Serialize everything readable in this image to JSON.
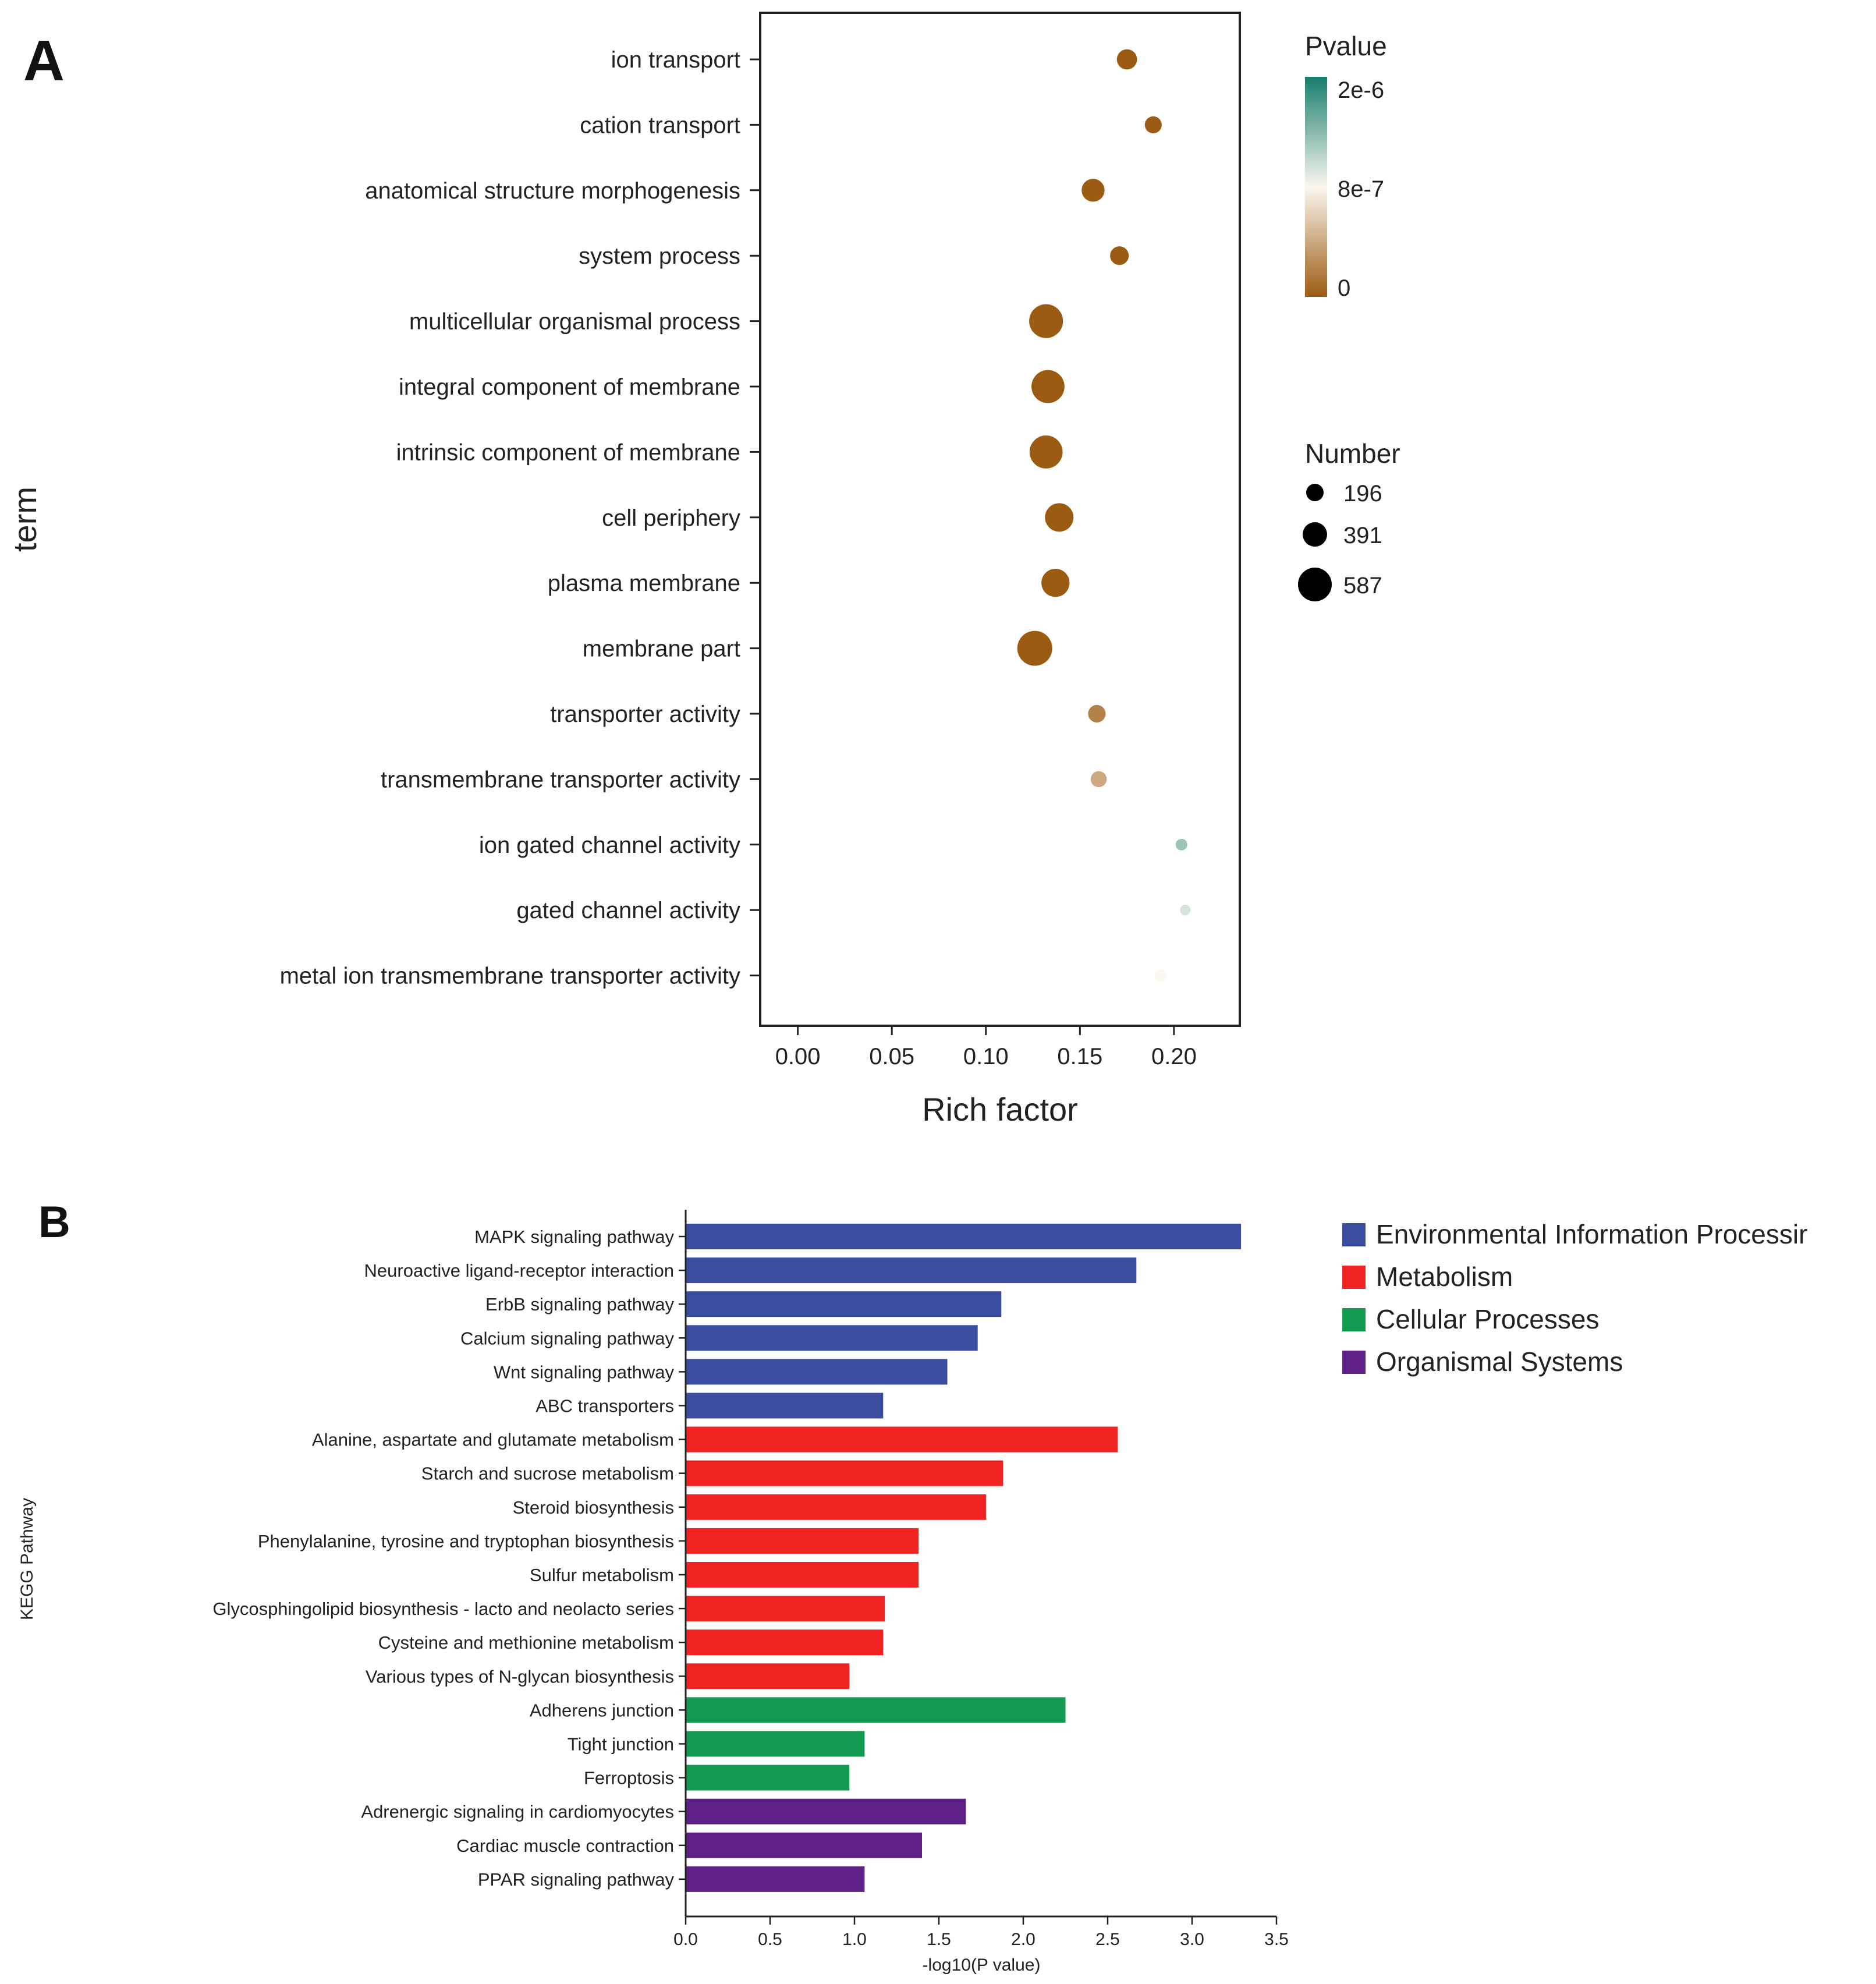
{
  "chart_data": [
    {
      "panel_label": "A",
      "type": "scatter",
      "subtype": "bubble",
      "title": "",
      "xlabel": "Rich factor",
      "ylabel": "term",
      "xlim": [
        -0.02,
        0.235
      ],
      "xticks": [
        0.0,
        0.05,
        0.1,
        0.15,
        0.2
      ],
      "xtick_labels": [
        "0.00",
        "0.05",
        "0.10",
        "0.15",
        "0.20"
      ],
      "grid": false,
      "terms": [
        "ion transport",
        "cation transport",
        "anatomical structure morphogenesis",
        "system process",
        "multicellular organismal process",
        "integral component of membrane",
        "intrinsic component of membrane",
        "cell periphery",
        "plasma membrane",
        "membrane part",
        "transporter activity",
        "transmembrane transporter activity",
        "ion gated channel activity",
        "gated channel activity",
        "metal ion transmembrane transporter activity"
      ],
      "rich_factor": [
        0.175,
        0.189,
        0.157,
        0.171,
        0.132,
        0.133,
        0.132,
        0.139,
        0.137,
        0.126,
        0.159,
        0.16,
        0.204,
        0.206,
        0.193
      ],
      "number": [
        170,
        110,
        230,
        140,
        560,
        530,
        530,
        380,
        370,
        600,
        120,
        95,
        40,
        30,
        45
      ],
      "pvalue": [
        0,
        0,
        0,
        0,
        0,
        0,
        0,
        0,
        0,
        0,
        2e-07,
        4e-07,
        1.3e-06,
        1e-06,
        8e-07
      ],
      "legend_color": {
        "title": "Pvalue",
        "labels": [
          "2e-6",
          "8e-7",
          "0"
        ],
        "colors": [
          "#167d6c",
          "#fbf7ee",
          "#9c5b12"
        ]
      },
      "legend_size": {
        "title": "Number",
        "labels": [
          "196",
          "391",
          "587"
        ]
      },
      "legend_position": "right"
    },
    {
      "panel_label": "B",
      "type": "bar",
      "orientation": "horizontal",
      "title": "",
      "xlabel": "-log10(P value)",
      "ylabel": "KEGG Pathway",
      "xlim": [
        0,
        3.5
      ],
      "xticks": [
        0.0,
        0.5,
        1.0,
        1.5,
        2.0,
        2.5,
        3.0,
        3.5
      ],
      "xtick_labels": [
        "0.0",
        "0.5",
        "1.0",
        "1.5",
        "2.0",
        "2.5",
        "3.0",
        "3.5"
      ],
      "categories": [
        "MAPK signaling pathway",
        "Neuroactive ligand-receptor interaction",
        "ErbB signaling pathway",
        "Calcium signaling pathway",
        "Wnt signaling pathway",
        "ABC transporters",
        "Alanine, aspartate and glutamate metabolism",
        "Starch and sucrose metabolism",
        "Steroid biosynthesis",
        "Phenylalanine, tyrosine and tryptophan biosynthesis",
        "Sulfur metabolism",
        "Glycosphingolipid biosynthesis - lacto and neolacto series",
        "Cysteine and methionine metabolism",
        "Various types of N-glycan biosynthesis",
        "Adherens junction",
        "Tight junction",
        "Ferroptosis",
        "Adrenergic signaling in cardiomyocytes",
        "Cardiac muscle contraction",
        "PPAR signaling pathway"
      ],
      "values": [
        3.29,
        2.67,
        1.87,
        1.73,
        1.55,
        1.17,
        2.56,
        1.88,
        1.78,
        1.38,
        1.38,
        1.18,
        1.17,
        0.97,
        2.25,
        1.06,
        0.97,
        1.66,
        1.4,
        1.06
      ],
      "groups": [
        "Environmental Information Processing",
        "Environmental Information Processing",
        "Environmental Information Processing",
        "Environmental Information Processing",
        "Environmental Information Processing",
        "Environmental Information Processing",
        "Metabolism",
        "Metabolism",
        "Metabolism",
        "Metabolism",
        "Metabolism",
        "Metabolism",
        "Metabolism",
        "Metabolism",
        "Cellular Processes",
        "Cellular Processes",
        "Cellular Processes",
        "Organismal Systems",
        "Organismal Systems",
        "Organismal Systems"
      ],
      "legend": [
        {
          "name": "Environmental Information Processing",
          "display": "Environmental Information Processir",
          "color": "#3a4c9e"
        },
        {
          "name": "Metabolism",
          "display": "Metabolism",
          "color": "#f02222"
        },
        {
          "name": "Cellular Processes",
          "display": "Cellular Processes",
          "color": "#159a52"
        },
        {
          "name": "Organismal Systems",
          "display": "Organismal Systems",
          "color": "#5e1f86"
        }
      ],
      "legend_position": "top-right"
    }
  ]
}
